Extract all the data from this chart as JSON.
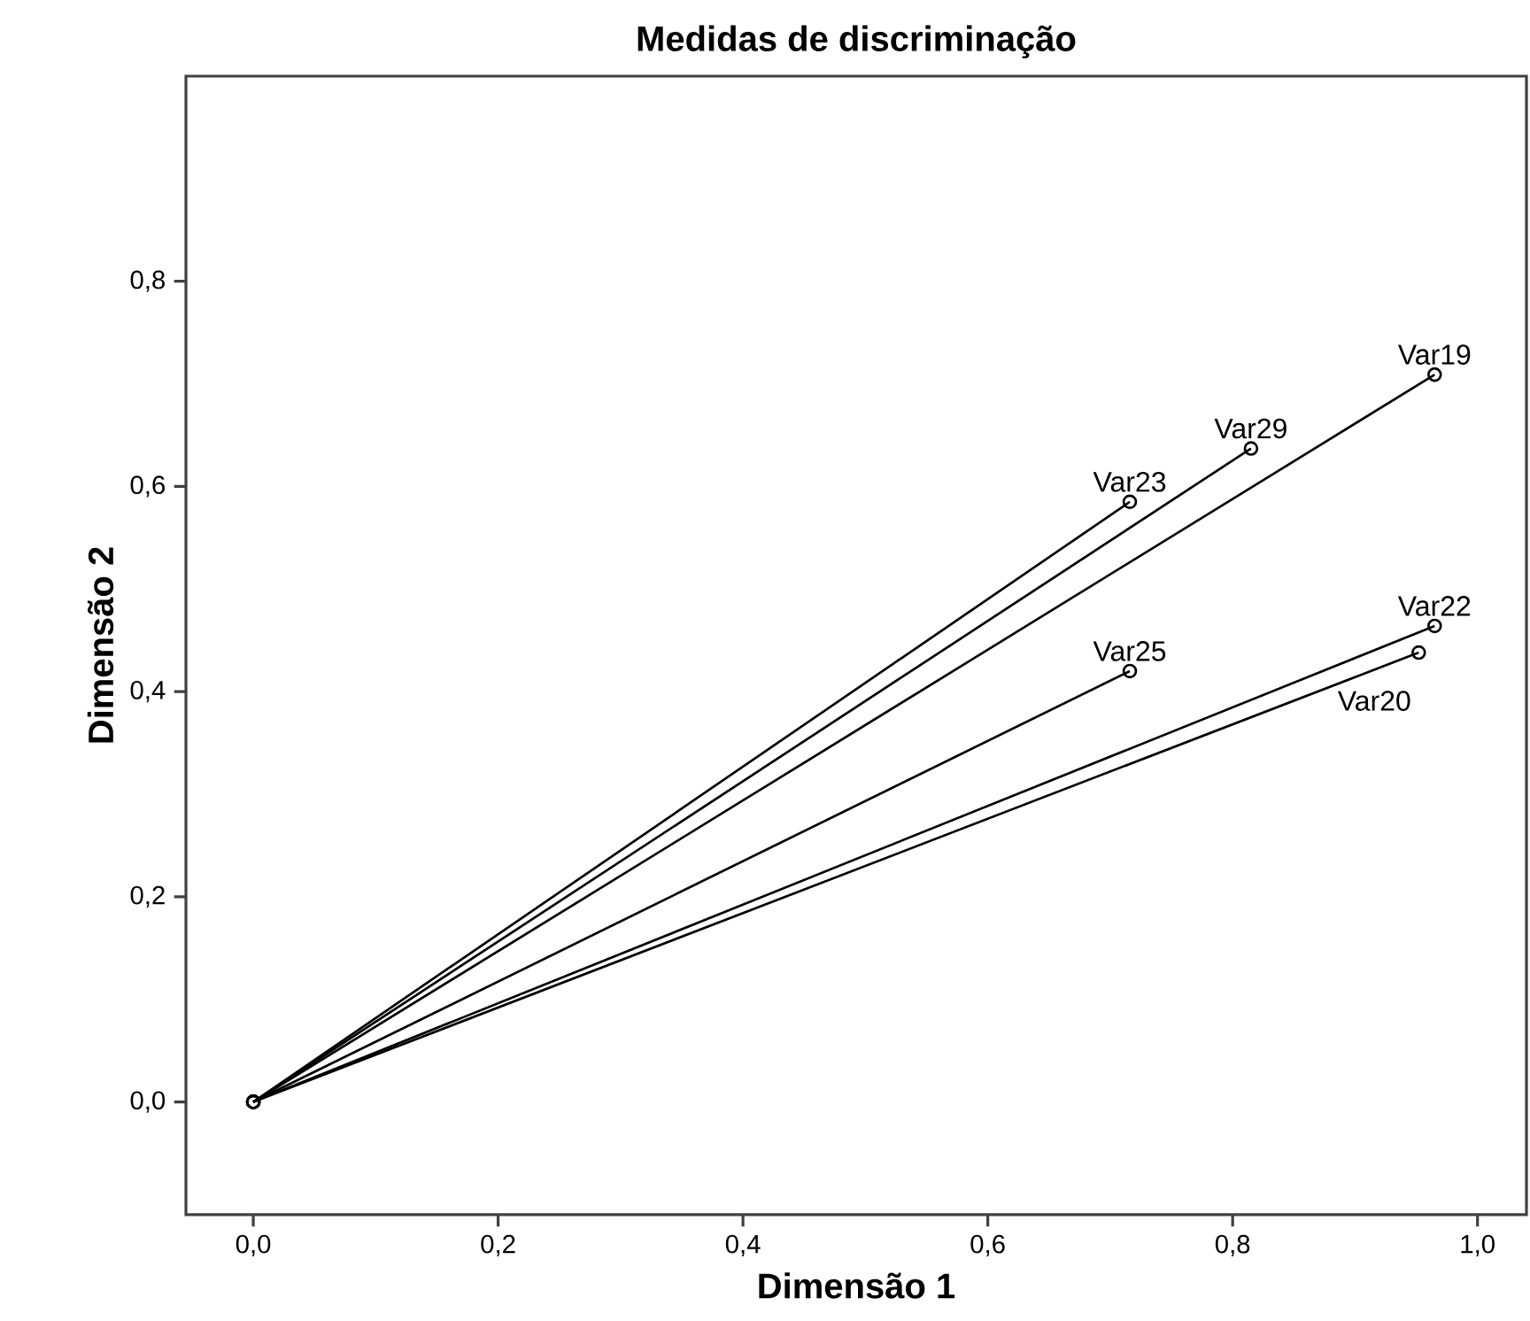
{
  "chart_data": {
    "type": "line",
    "title": "Medidas de discriminação",
    "xlabel": "Dimensão 1",
    "ylabel": "Dimensão 2",
    "xlim": [
      -0.055,
      1.04
    ],
    "ylim": [
      -0.11,
      1.0
    ],
    "xticks": [
      {
        "value": 0,
        "label": "0,0"
      },
      {
        "value": 0.2,
        "label": "0,2"
      },
      {
        "value": 0.4,
        "label": "0,4"
      },
      {
        "value": 0.6,
        "label": "0,6"
      },
      {
        "value": 0.8,
        "label": "0,8"
      },
      {
        "value": 1.0,
        "label": "1,0"
      }
    ],
    "yticks": [
      {
        "value": 0,
        "label": "0,0"
      },
      {
        "value": 0.2,
        "label": "0,2"
      },
      {
        "value": 0.4,
        "label": "0,4"
      },
      {
        "value": 0.6,
        "label": "0,6"
      },
      {
        "value": 0.8,
        "label": "0,8"
      }
    ],
    "marker": "circle",
    "line_style": "solid",
    "grid": false,
    "legend": false,
    "series": [
      {
        "name": "Var19",
        "color": "#000000",
        "x": [
          0,
          0.965
        ],
        "values": [
          0,
          0.709
        ]
      },
      {
        "name": "Var29",
        "color": "#000000",
        "x": [
          0,
          0.815
        ],
        "values": [
          0,
          0.637
        ]
      },
      {
        "name": "Var23",
        "color": "#000000",
        "x": [
          0,
          0.716
        ],
        "values": [
          0,
          0.585
        ]
      },
      {
        "name": "Var25",
        "color": "#000000",
        "x": [
          0,
          0.716
        ],
        "values": [
          0,
          0.42
        ]
      },
      {
        "name": "Var22",
        "color": "#000000",
        "x": [
          0,
          0.965
        ],
        "values": [
          0,
          0.464
        ]
      },
      {
        "name": "Var20",
        "color": "#000000",
        "x": [
          0,
          0.952
        ],
        "values": [
          0,
          0.438
        ]
      }
    ]
  }
}
